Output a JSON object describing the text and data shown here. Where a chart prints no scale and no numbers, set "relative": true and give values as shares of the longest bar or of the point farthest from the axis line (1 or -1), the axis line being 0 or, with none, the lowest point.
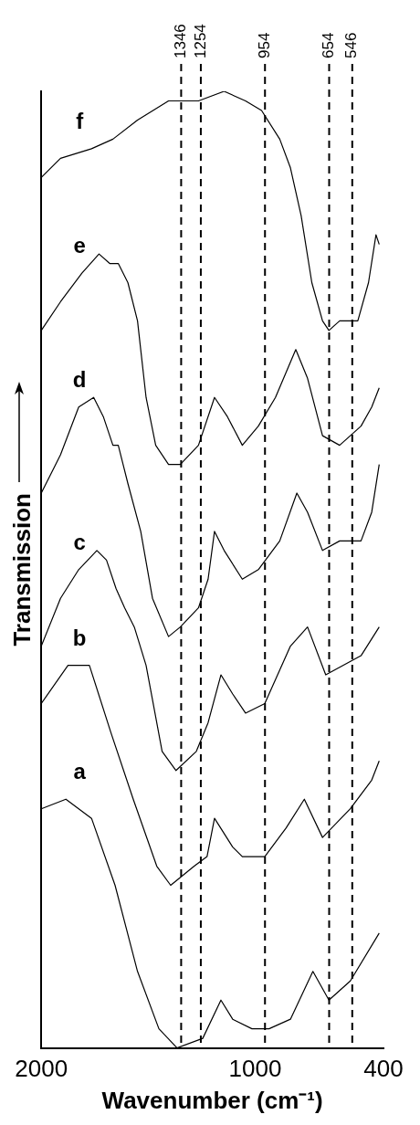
{
  "chart_data": {
    "type": "line",
    "xlabel": "Wavenumber (cm⁻¹)",
    "ylabel": "Transmission",
    "relative": true,
    "xlim": [
      2000,
      400
    ],
    "xticks": [
      2000,
      1000,
      400
    ],
    "series": [
      {
        "name": "a",
        "color": "#000000",
        "x": [
          2000,
          1885,
          1765,
          1655,
          1550,
          1450,
          1365,
          1245,
          1160,
          1105,
          1015,
          935,
          835,
          730,
          655,
          555,
          420
        ],
        "values": [
          0.25,
          0.26,
          0.24,
          0.17,
          0.08,
          0.02,
          0,
          0.01,
          0.05,
          0.03,
          0.02,
          0.02,
          0.03,
          0.08,
          0.05,
          0.07,
          0.12
        ]
      },
      {
        "name": "b",
        "color": "#000000",
        "x": [
          2000,
          1875,
          1805,
          1775,
          1675,
          1570,
          1460,
          1395,
          1285,
          1225,
          1190,
          1105,
          1060,
          955,
          855,
          770,
          685,
          555,
          455,
          420
        ],
        "values": [
          0.36,
          0.4,
          0.4,
          0.4,
          0.33,
          0.26,
          0.19,
          0.17,
          0.19,
          0.2,
          0.24,
          0.21,
          0.2,
          0.2,
          0.23,
          0.26,
          0.22,
          0.25,
          0.28,
          0.3
        ]
      },
      {
        "name": "c",
        "color": "#000000",
        "x": [
          2000,
          1910,
          1825,
          1740,
          1695,
          1650,
          1610,
          1565,
          1510,
          1435,
          1370,
          1275,
          1220,
          1160,
          1105,
          1045,
          955,
          835,
          755,
          670,
          505,
          420
        ],
        "values": [
          0.42,
          0.47,
          0.5,
          0.52,
          0.51,
          0.48,
          0.46,
          0.44,
          0.4,
          0.31,
          0.29,
          0.31,
          0.34,
          0.39,
          0.37,
          0.35,
          0.36,
          0.42,
          0.44,
          0.39,
          0.41,
          0.44
        ]
      },
      {
        "name": "d",
        "color": "#000000",
        "x": [
          2000,
          1910,
          1825,
          1755,
          1710,
          1665,
          1640,
          1595,
          1535,
          1480,
          1405,
          1350,
          1265,
          1220,
          1190,
          1145,
          1060,
          985,
          885,
          805,
          755,
          685,
          605,
          505,
          455,
          420
        ],
        "values": [
          0.58,
          0.62,
          0.67,
          0.68,
          0.66,
          0.63,
          0.63,
          0.59,
          0.54,
          0.47,
          0.43,
          0.44,
          0.46,
          0.49,
          0.54,
          0.52,
          0.49,
          0.5,
          0.53,
          0.58,
          0.56,
          0.52,
          0.53,
          0.53,
          0.56,
          0.61
        ]
      },
      {
        "name": "e",
        "color": "#000000",
        "x": [
          2000,
          1910,
          1810,
          1730,
          1680,
          1640,
          1595,
          1550,
          1535,
          1510,
          1465,
          1405,
          1350,
          1265,
          1190,
          1130,
          1060,
          985,
          905,
          810,
          755,
          685,
          605,
          505,
          455,
          420
        ],
        "values": [
          0.75,
          0.78,
          0.81,
          0.83,
          0.82,
          0.82,
          0.8,
          0.76,
          0.73,
          0.68,
          0.63,
          0.61,
          0.61,
          0.63,
          0.68,
          0.66,
          0.63,
          0.65,
          0.68,
          0.73,
          0.7,
          0.64,
          0.63,
          0.65,
          0.67,
          0.69
        ]
      },
      {
        "name": "f",
        "color": "#000000",
        "x": [
          2000,
          1910,
          1765,
          1665,
          1550,
          1405,
          1265,
          1145,
          1045,
          970,
          885,
          835,
          785,
          735,
          685,
          655,
          605,
          520,
          470,
          435,
          420
        ],
        "values": [
          0.91,
          0.93,
          0.94,
          0.95,
          0.97,
          0.99,
          0.99,
          1,
          0.99,
          0.98,
          0.95,
          0.92,
          0.87,
          0.8,
          0.76,
          0.75,
          0.76,
          0.76,
          0.8,
          0.85,
          0.84
        ]
      }
    ],
    "ref_lines": [
      {
        "axis": "x",
        "value": 1346,
        "label": "1346",
        "color": "#000000",
        "line_style": "dashed"
      },
      {
        "axis": "x",
        "value": 1254,
        "label": "1254",
        "color": "#000000",
        "line_style": "dashed"
      },
      {
        "axis": "x",
        "value": 954,
        "label": "954",
        "color": "#000000",
        "line_style": "dashed"
      },
      {
        "axis": "x",
        "value": 654,
        "label": "654",
        "color": "#000000",
        "line_style": "dashed"
      },
      {
        "axis": "x",
        "value": 546,
        "label": "546",
        "color": "#000000",
        "line_style": "dashed"
      }
    ]
  }
}
